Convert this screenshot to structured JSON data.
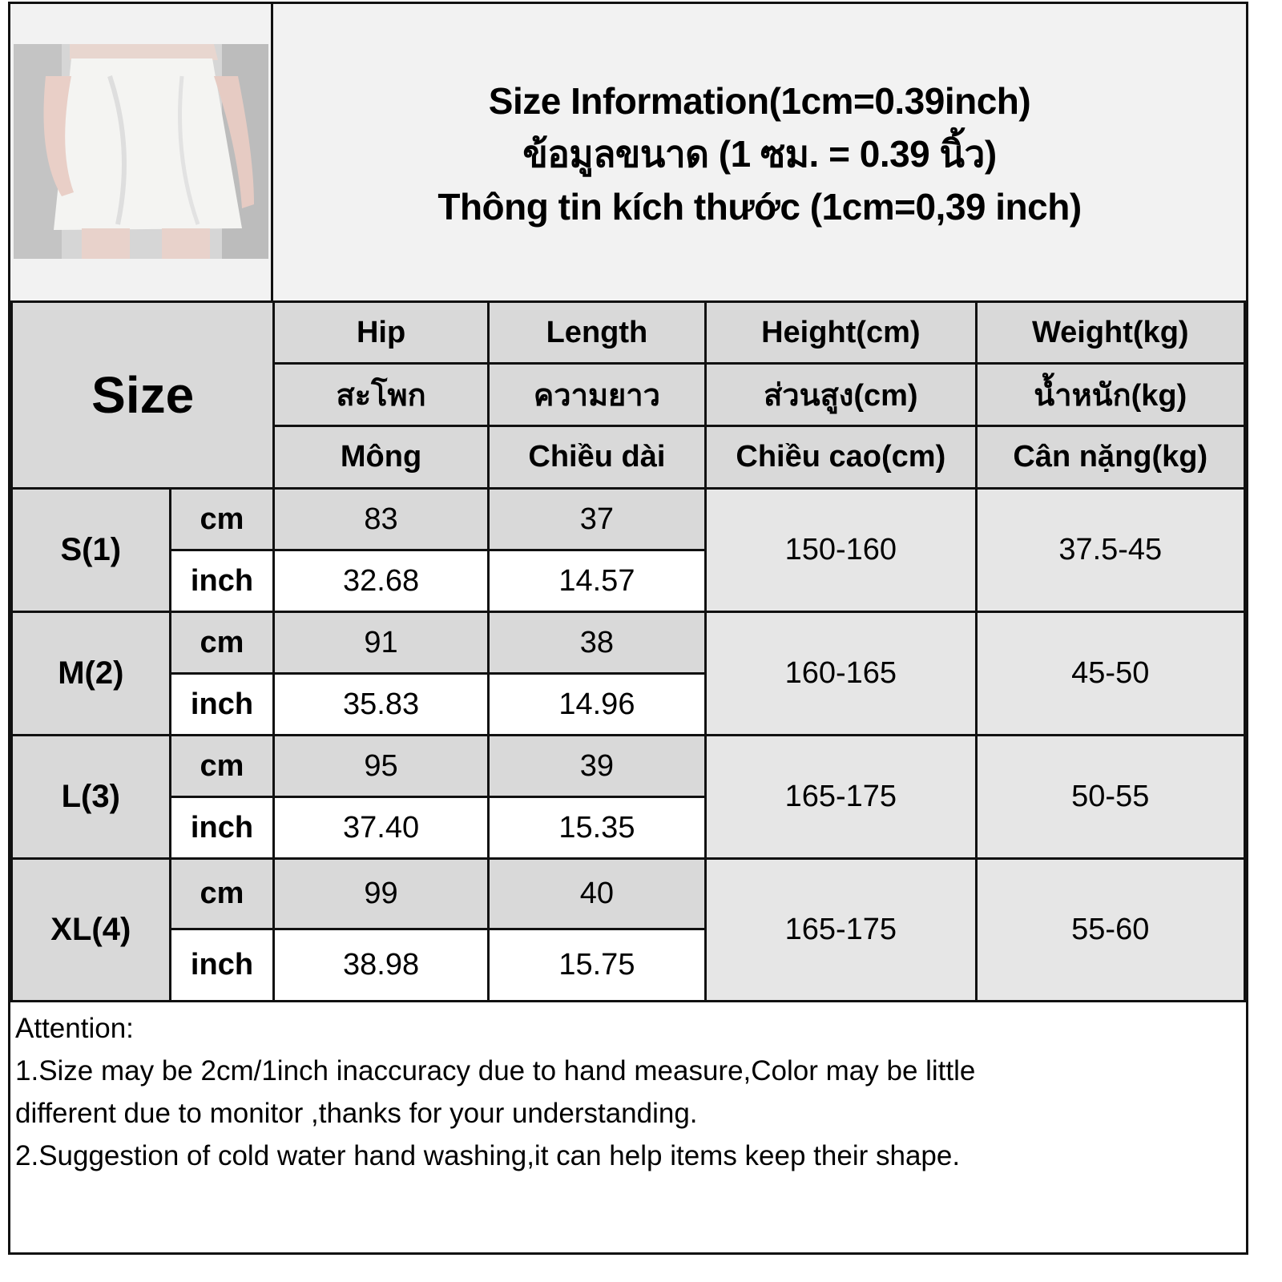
{
  "title_lines": [
    "Size Information(1cm=0.39inch)",
    "ข้อมูลขนาด (1 ซม. = 0.39 นิ้ว)",
    "Thông tin kích thước (1cm=0,39 inch)"
  ],
  "photo": "white mini skirt product photo",
  "size_header": "Size",
  "columns": [
    {
      "en": "Hip",
      "th": "สะโพก",
      "vi": "Mông"
    },
    {
      "en": "Length",
      "th": "ความยาว",
      "vi": "Chiều dài"
    },
    {
      "en": "Height(cm)",
      "th": "ส่วนสูง(cm)",
      "vi": "Chiều cao(cm)"
    },
    {
      "en": "Weight(kg)",
      "th": "น้ำหนัก(kg)",
      "vi": "Cân nặng(kg)"
    }
  ],
  "units": {
    "cm": "cm",
    "inch": "inch"
  },
  "rows": [
    {
      "size": "S(1)",
      "hip_cm": "83",
      "length_cm": "37",
      "hip_inch": "32.68",
      "length_inch": "14.57",
      "height": "150-160",
      "weight": "37.5-45"
    },
    {
      "size": "M(2)",
      "hip_cm": "91",
      "length_cm": "38",
      "hip_inch": "35.83",
      "length_inch": "14.96",
      "height": "160-165",
      "weight": "45-50"
    },
    {
      "size": "L(3)",
      "hip_cm": "95",
      "length_cm": "39",
      "hip_inch": "37.40",
      "length_inch": "15.35",
      "height": "165-175",
      "weight": "50-55"
    },
    {
      "size": "XL(4)",
      "hip_cm": "99",
      "length_cm": "40",
      "hip_inch": "38.98",
      "length_inch": "15.75",
      "height": "165-175",
      "weight": "55-60"
    }
  ],
  "attention": [
    "Attention:",
    "1.Size may be 2cm/1inch inaccuracy due to hand measure,Color may be little",
    "different due to monitor ,thanks for your understanding.",
    "2.Suggestion of cold water hand washing,it can help items keep their shape."
  ],
  "colors": {
    "header_gray": "#d9d9d9",
    "title_bg": "#f2f2f2",
    "border": "#111111"
  }
}
